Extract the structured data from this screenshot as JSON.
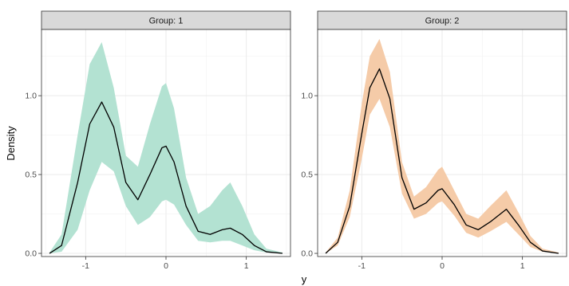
{
  "chart_data": {
    "type": "area",
    "facet_prefix": "Group:",
    "xlabel": "y",
    "ylabel": "Density",
    "xlim": [
      -1.55,
      1.55
    ],
    "ylim": [
      -0.02,
      1.42
    ],
    "x_ticks": [
      -1,
      0,
      1
    ],
    "y_ticks": [
      0.0,
      0.5,
      1.0
    ],
    "x_tick_labels": [
      "-1",
      "0",
      "1"
    ],
    "y_tick_labels": [
      "0.0",
      "0.5",
      "1.0"
    ],
    "grid": true,
    "legend": "none",
    "panels": [
      {
        "group": "1",
        "strip_label": "Group:  1",
        "fill_color": "#b3e2d2",
        "line_color": "#000000",
        "x": [
          -1.45,
          -1.3,
          -1.1,
          -0.95,
          -0.8,
          -0.65,
          -0.5,
          -0.35,
          -0.2,
          -0.05,
          0.0,
          0.1,
          0.25,
          0.4,
          0.55,
          0.7,
          0.8,
          0.95,
          1.1,
          1.25,
          1.45
        ],
        "lower": [
          0.0,
          0.01,
          0.15,
          0.4,
          0.58,
          0.52,
          0.3,
          0.18,
          0.23,
          0.33,
          0.34,
          0.31,
          0.18,
          0.08,
          0.07,
          0.08,
          0.08,
          0.05,
          0.02,
          0.005,
          0.0
        ],
        "estimate": [
          0.0,
          0.05,
          0.45,
          0.82,
          0.96,
          0.8,
          0.45,
          0.34,
          0.5,
          0.67,
          0.68,
          0.58,
          0.3,
          0.14,
          0.12,
          0.15,
          0.16,
          0.12,
          0.05,
          0.01,
          0.0
        ],
        "upper": [
          0.005,
          0.12,
          0.75,
          1.2,
          1.34,
          1.05,
          0.62,
          0.55,
          0.82,
          1.06,
          1.08,
          0.92,
          0.48,
          0.25,
          0.3,
          0.4,
          0.45,
          0.3,
          0.12,
          0.03,
          0.005
        ]
      },
      {
        "group": "2",
        "strip_label": "Group:  2",
        "fill_color": "#f5cba8",
        "line_color": "#000000",
        "x": [
          -1.45,
          -1.3,
          -1.15,
          -1.0,
          -0.9,
          -0.78,
          -0.65,
          -0.5,
          -0.35,
          -0.2,
          -0.05,
          0.0,
          0.15,
          0.3,
          0.45,
          0.6,
          0.8,
          0.95,
          1.1,
          1.25,
          1.45
        ],
        "lower": [
          0.0,
          0.05,
          0.23,
          0.6,
          0.88,
          0.98,
          0.8,
          0.38,
          0.22,
          0.25,
          0.32,
          0.33,
          0.24,
          0.13,
          0.1,
          0.14,
          0.2,
          0.12,
          0.04,
          0.01,
          0.0
        ],
        "estimate": [
          0.0,
          0.07,
          0.3,
          0.76,
          1.05,
          1.17,
          0.98,
          0.48,
          0.28,
          0.32,
          0.4,
          0.41,
          0.31,
          0.18,
          0.15,
          0.2,
          0.28,
          0.18,
          0.07,
          0.015,
          0.0
        ],
        "upper": [
          0.005,
          0.1,
          0.4,
          0.95,
          1.25,
          1.36,
          1.15,
          0.58,
          0.36,
          0.42,
          0.53,
          0.55,
          0.4,
          0.25,
          0.22,
          0.3,
          0.4,
          0.26,
          0.11,
          0.03,
          0.005
        ]
      }
    ]
  }
}
